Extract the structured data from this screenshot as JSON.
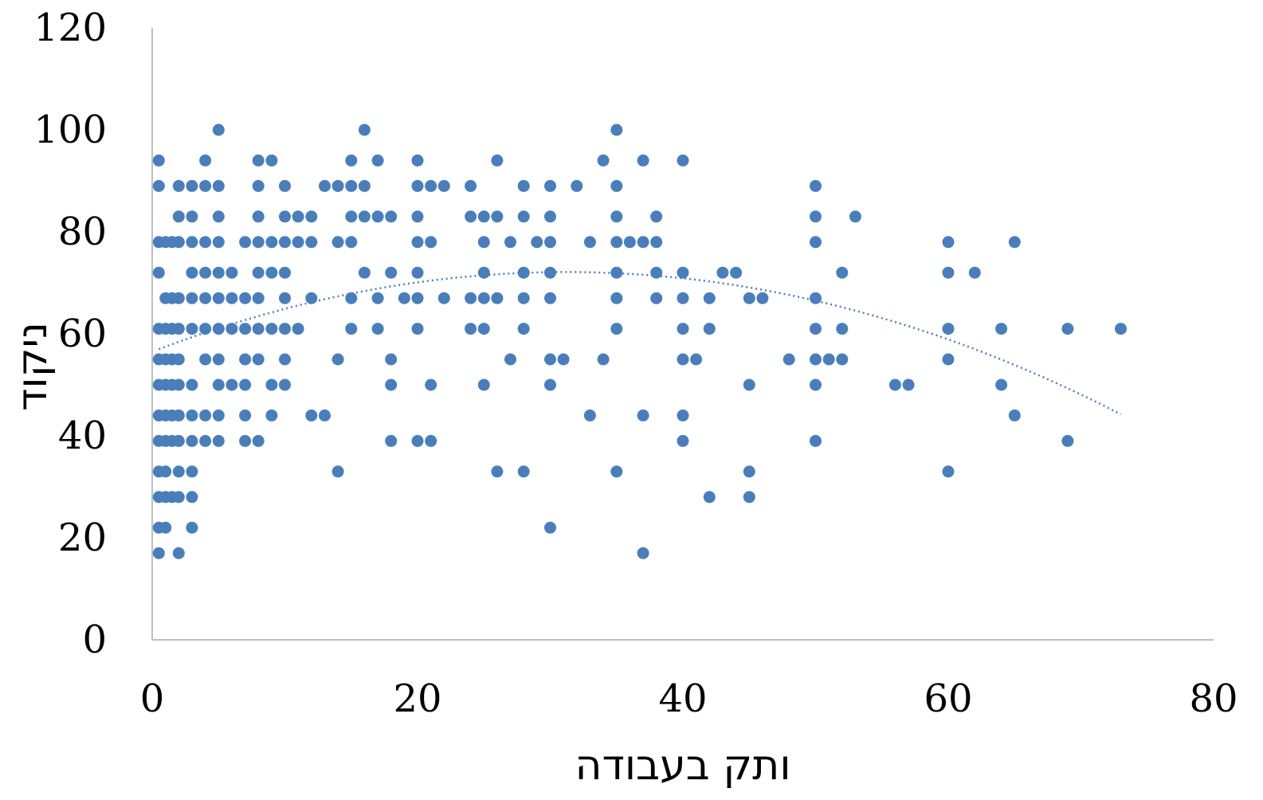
{
  "chart_data": {
    "type": "scatter",
    "title": "",
    "xlabel": "ותק בעבודה",
    "ylabel": "ניקוד",
    "xlim": [
      0,
      80
    ],
    "ylim": [
      0,
      120
    ],
    "x_ticks": [
      0,
      20,
      40,
      60,
      80
    ],
    "y_ticks": [
      0,
      20,
      40,
      60,
      80,
      100,
      120
    ],
    "grid": false,
    "legend": "none",
    "colors": {
      "points": "#4a7ebb",
      "trendline": "#4a7ebb",
      "axis": "#bfbfbf"
    },
    "trendline": {
      "type": "polynomial-2",
      "x_start": 0.5,
      "x_end": 73,
      "coefficients": [
        56.5,
        1.0,
        -0.016
      ],
      "style": "dotted"
    },
    "points": [
      [
        0.5,
        94
      ],
      [
        0.5,
        89
      ],
      [
        0.5,
        78
      ],
      [
        0.5,
        72
      ],
      [
        0.5,
        61
      ],
      [
        0.5,
        55
      ],
      [
        0.5,
        50
      ],
      [
        0.5,
        44
      ],
      [
        0.5,
        39
      ],
      [
        0.5,
        33
      ],
      [
        0.5,
        28
      ],
      [
        0.5,
        22
      ],
      [
        0.5,
        17
      ],
      [
        1,
        78
      ],
      [
        1,
        67
      ],
      [
        1,
        61
      ],
      [
        1,
        55
      ],
      [
        1,
        50
      ],
      [
        1,
        44
      ],
      [
        1,
        39
      ],
      [
        1,
        33
      ],
      [
        1,
        28
      ],
      [
        1,
        22
      ],
      [
        1.5,
        78
      ],
      [
        1.5,
        67
      ],
      [
        1.5,
        61
      ],
      [
        1.5,
        55
      ],
      [
        1.5,
        50
      ],
      [
        1.5,
        44
      ],
      [
        1.5,
        39
      ],
      [
        1.5,
        28
      ],
      [
        2,
        89
      ],
      [
        2,
        83
      ],
      [
        2,
        78
      ],
      [
        2,
        67
      ],
      [
        2,
        61
      ],
      [
        2,
        55
      ],
      [
        2,
        50
      ],
      [
        2,
        44
      ],
      [
        2,
        39
      ],
      [
        2,
        33
      ],
      [
        2,
        28
      ],
      [
        2,
        17
      ],
      [
        3,
        89
      ],
      [
        3,
        83
      ],
      [
        3,
        78
      ],
      [
        3,
        72
      ],
      [
        3,
        67
      ],
      [
        3,
        61
      ],
      [
        3,
        50
      ],
      [
        3,
        44
      ],
      [
        3,
        39
      ],
      [
        3,
        33
      ],
      [
        3,
        28
      ],
      [
        3,
        22
      ],
      [
        4,
        94
      ],
      [
        4,
        89
      ],
      [
        4,
        78
      ],
      [
        4,
        72
      ],
      [
        4,
        67
      ],
      [
        4,
        61
      ],
      [
        4,
        55
      ],
      [
        4,
        44
      ],
      [
        4,
        39
      ],
      [
        5,
        100
      ],
      [
        5,
        89
      ],
      [
        5,
        83
      ],
      [
        5,
        78
      ],
      [
        5,
        72
      ],
      [
        5,
        67
      ],
      [
        5,
        61
      ],
      [
        5,
        55
      ],
      [
        5,
        50
      ],
      [
        5,
        44
      ],
      [
        5,
        39
      ],
      [
        6,
        72
      ],
      [
        6,
        67
      ],
      [
        6,
        61
      ],
      [
        6,
        50
      ],
      [
        7,
        78
      ],
      [
        7,
        67
      ],
      [
        7,
        61
      ],
      [
        7,
        55
      ],
      [
        7,
        50
      ],
      [
        7,
        44
      ],
      [
        7,
        39
      ],
      [
        8,
        94
      ],
      [
        8,
        89
      ],
      [
        8,
        83
      ],
      [
        8,
        78
      ],
      [
        8,
        72
      ],
      [
        8,
        67
      ],
      [
        8,
        61
      ],
      [
        8,
        55
      ],
      [
        8,
        39
      ],
      [
        9,
        94
      ],
      [
        9,
        78
      ],
      [
        9,
        72
      ],
      [
        9,
        61
      ],
      [
        9,
        50
      ],
      [
        9,
        44
      ],
      [
        10,
        89
      ],
      [
        10,
        83
      ],
      [
        10,
        78
      ],
      [
        10,
        72
      ],
      [
        10,
        67
      ],
      [
        10,
        61
      ],
      [
        10,
        55
      ],
      [
        10,
        50
      ],
      [
        11,
        83
      ],
      [
        11,
        78
      ],
      [
        11,
        61
      ],
      [
        12,
        83
      ],
      [
        12,
        78
      ],
      [
        12,
        67
      ],
      [
        12,
        44
      ],
      [
        13,
        89
      ],
      [
        13,
        44
      ],
      [
        14,
        89
      ],
      [
        14,
        78
      ],
      [
        14,
        55
      ],
      [
        14,
        33
      ],
      [
        15,
        94
      ],
      [
        15,
        89
      ],
      [
        15,
        83
      ],
      [
        15,
        78
      ],
      [
        15,
        67
      ],
      [
        15,
        61
      ],
      [
        16,
        100
      ],
      [
        16,
        89
      ],
      [
        16,
        83
      ],
      [
        16,
        72
      ],
      [
        17,
        94
      ],
      [
        17,
        83
      ],
      [
        17,
        67
      ],
      [
        17,
        61
      ],
      [
        18,
        83
      ],
      [
        18,
        72
      ],
      [
        18,
        55
      ],
      [
        18,
        50
      ],
      [
        18,
        39
      ],
      [
        19,
        67
      ],
      [
        20,
        94
      ],
      [
        20,
        89
      ],
      [
        20,
        83
      ],
      [
        20,
        78
      ],
      [
        20,
        72
      ],
      [
        20,
        67
      ],
      [
        20,
        61
      ],
      [
        20,
        39
      ],
      [
        21,
        89
      ],
      [
        21,
        78
      ],
      [
        21,
        50
      ],
      [
        21,
        39
      ],
      [
        22,
        89
      ],
      [
        22,
        67
      ],
      [
        24,
        89
      ],
      [
        24,
        83
      ],
      [
        24,
        67
      ],
      [
        24,
        61
      ],
      [
        25,
        83
      ],
      [
        25,
        78
      ],
      [
        25,
        72
      ],
      [
        25,
        67
      ],
      [
        25,
        61
      ],
      [
        25,
        50
      ],
      [
        26,
        94
      ],
      [
        26,
        83
      ],
      [
        26,
        67
      ],
      [
        26,
        33
      ],
      [
        27,
        78
      ],
      [
        27,
        55
      ],
      [
        28,
        89
      ],
      [
        28,
        83
      ],
      [
        28,
        72
      ],
      [
        28,
        67
      ],
      [
        28,
        61
      ],
      [
        28,
        33
      ],
      [
        29,
        78
      ],
      [
        30,
        89
      ],
      [
        30,
        83
      ],
      [
        30,
        78
      ],
      [
        30,
        72
      ],
      [
        30,
        67
      ],
      [
        30,
        55
      ],
      [
        30,
        50
      ],
      [
        30,
        22
      ],
      [
        31,
        55
      ],
      [
        32,
        89
      ],
      [
        33,
        78
      ],
      [
        33,
        44
      ],
      [
        34,
        94
      ],
      [
        34,
        55
      ],
      [
        35,
        100
      ],
      [
        35,
        89
      ],
      [
        35,
        83
      ],
      [
        35,
        78
      ],
      [
        35,
        72
      ],
      [
        35,
        67
      ],
      [
        35,
        61
      ],
      [
        35,
        33
      ],
      [
        36,
        78
      ],
      [
        37,
        94
      ],
      [
        37,
        78
      ],
      [
        37,
        44
      ],
      [
        37,
        17
      ],
      [
        38,
        83
      ],
      [
        38,
        78
      ],
      [
        38,
        72
      ],
      [
        38,
        67
      ],
      [
        40,
        94
      ],
      [
        40,
        72
      ],
      [
        40,
        67
      ],
      [
        40,
        61
      ],
      [
        40,
        55
      ],
      [
        40,
        44
      ],
      [
        40,
        39
      ],
      [
        41,
        55
      ],
      [
        42,
        67
      ],
      [
        42,
        61
      ],
      [
        42,
        28
      ],
      [
        43,
        72
      ],
      [
        44,
        72
      ],
      [
        45,
        67
      ],
      [
        45,
        50
      ],
      [
        45,
        33
      ],
      [
        45,
        28
      ],
      [
        46,
        67
      ],
      [
        48,
        55
      ],
      [
        50,
        89
      ],
      [
        50,
        83
      ],
      [
        50,
        78
      ],
      [
        50,
        67
      ],
      [
        50,
        61
      ],
      [
        50,
        55
      ],
      [
        50,
        50
      ],
      [
        50,
        39
      ],
      [
        51,
        55
      ],
      [
        52,
        72
      ],
      [
        52,
        61
      ],
      [
        52,
        55
      ],
      [
        53,
        83
      ],
      [
        56,
        50
      ],
      [
        57,
        50
      ],
      [
        60,
        78
      ],
      [
        60,
        72
      ],
      [
        60,
        61
      ],
      [
        60,
        55
      ],
      [
        60,
        33
      ],
      [
        62,
        72
      ],
      [
        64,
        61
      ],
      [
        64,
        50
      ],
      [
        65,
        78
      ],
      [
        65,
        44
      ],
      [
        69,
        61
      ],
      [
        69,
        39
      ],
      [
        73,
        61
      ]
    ]
  }
}
